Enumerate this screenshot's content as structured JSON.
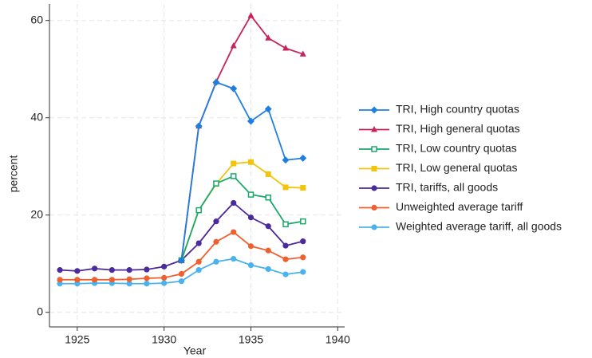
{
  "chart_data": {
    "type": "line",
    "x_label": "Year",
    "y_label": "percent",
    "x": [
      1924,
      1925,
      1926,
      1927,
      1928,
      1929,
      1930,
      1931,
      1932,
      1933,
      1934,
      1935,
      1936,
      1937,
      1938
    ],
    "xlim": [
      1923.4,
      1940.4
    ],
    "xticks": [
      1925,
      1930,
      1935,
      1940
    ],
    "ylim": [
      -3,
      63.4
    ],
    "yticks": [
      0,
      20,
      40,
      60
    ],
    "grid": true,
    "legend": "right",
    "series": [
      {
        "name": "TRI, High country quotas",
        "color": "#1f7fe0",
        "marker": "diamond",
        "values": [
          null,
          null,
          null,
          null,
          null,
          null,
          null,
          10.7,
          38.3,
          47.3,
          46.0,
          39.3,
          41.8,
          31.3,
          31.7
        ]
      },
      {
        "name": "TRI, High general quotas",
        "color": "#c8245a",
        "marker": "triangle",
        "values": [
          null,
          null,
          null,
          null,
          null,
          null,
          null,
          10.7,
          38.3,
          47.4,
          54.8,
          61.0,
          56.4,
          54.3,
          53.1
        ]
      },
      {
        "name": "TRI, Low country quotas",
        "color": "#1aa86a",
        "marker": "square-open",
        "values": [
          null,
          null,
          null,
          null,
          null,
          null,
          null,
          10.7,
          21.0,
          26.5,
          28.0,
          24.2,
          23.6,
          18.1,
          18.7
        ]
      },
      {
        "name": "TRI, Low general quotas",
        "color": "#f2c40c",
        "marker": "square",
        "values": [
          null,
          null,
          null,
          null,
          null,
          null,
          null,
          10.7,
          21.0,
          26.4,
          30.6,
          30.9,
          28.4,
          25.7,
          25.6
        ]
      },
      {
        "name": "TRI, tariffs, all goods",
        "color": "#4a2a9c",
        "marker": "circle",
        "values": [
          8.7,
          8.5,
          9.0,
          8.7,
          8.7,
          8.8,
          9.4,
          10.7,
          14.2,
          18.7,
          22.5,
          19.5,
          17.7,
          13.7,
          14.6
        ]
      },
      {
        "name": "Unweighted average tariff",
        "color": "#f0602e",
        "marker": "circle",
        "values": [
          6.7,
          6.7,
          6.7,
          6.7,
          6.8,
          7.0,
          7.1,
          7.9,
          10.4,
          14.5,
          16.5,
          13.6,
          12.7,
          10.9,
          11.3
        ]
      },
      {
        "name": "Weighted average tariff, all goods",
        "color": "#4ab2ef",
        "marker": "circle",
        "values": [
          5.9,
          5.9,
          6.0,
          6.0,
          5.9,
          5.9,
          6.0,
          6.4,
          8.7,
          10.4,
          11.0,
          9.7,
          8.9,
          7.8,
          8.3
        ]
      }
    ]
  }
}
